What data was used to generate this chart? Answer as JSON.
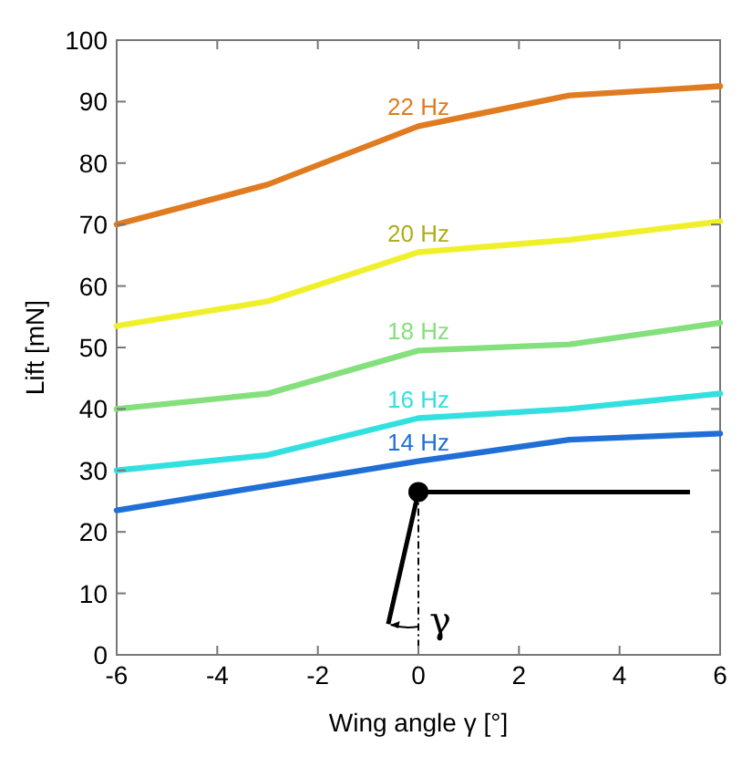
{
  "chart_data": {
    "type": "line",
    "xlabel": "Wing angle γ [°]",
    "ylabel": "Lift [mN]",
    "x": [
      -6,
      -3,
      0,
      3,
      6
    ],
    "series": [
      {
        "name": "22 Hz",
        "color": "#e07b20",
        "values": [
          70,
          76.5,
          86,
          91,
          92.5
        ]
      },
      {
        "name": "20 Hz",
        "color": "#f0f02a",
        "values": [
          53.5,
          57.5,
          65.5,
          67.5,
          70.5
        ]
      },
      {
        "name": "18 Hz",
        "color": "#84e07c",
        "values": [
          40,
          42.5,
          49.5,
          50.5,
          54
        ]
      },
      {
        "name": "16 Hz",
        "color": "#33e0e0",
        "values": [
          30,
          32.5,
          38.5,
          40,
          42.5
        ]
      },
      {
        "name": "14 Hz",
        "color": "#1f6fd6",
        "values": [
          23.5,
          27.5,
          31.5,
          35,
          36
        ]
      }
    ],
    "xlim": [
      -6,
      6
    ],
    "xticks": [
      -6,
      -4,
      -2,
      0,
      2,
      4,
      6
    ],
    "ylim": [
      0,
      100
    ],
    "yticks": [
      0,
      10,
      20,
      30,
      40,
      50,
      60,
      70,
      80,
      90,
      100
    ],
    "grid": false,
    "marker": "none",
    "line_style": "solid",
    "annotations": [
      "γ"
    ]
  }
}
